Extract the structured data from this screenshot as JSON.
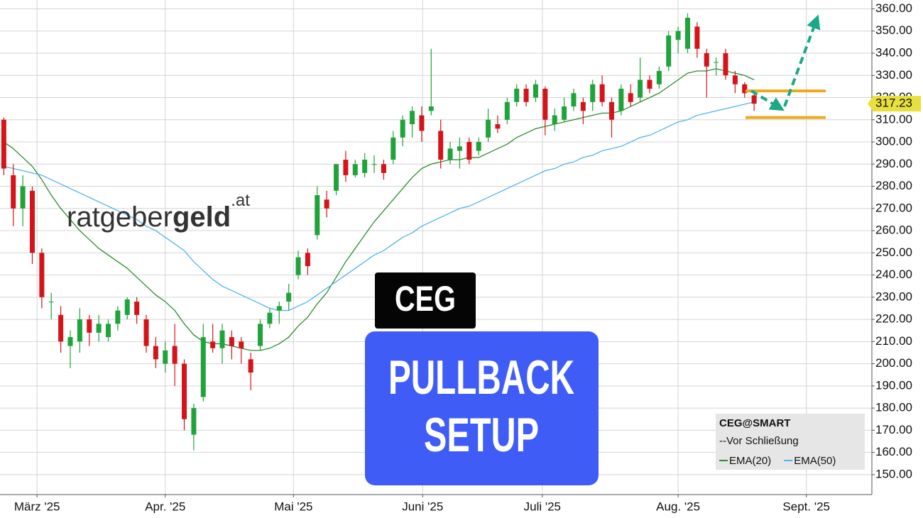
{
  "chart_data": {
    "type": "candlestick",
    "categories": [
      null,
      null,
      null,
      null,
      null,
      null,
      null,
      null,
      null,
      null,
      null,
      null,
      null,
      null,
      null,
      null,
      null,
      null,
      null,
      null,
      null,
      null,
      null,
      null,
      null,
      null,
      null,
      null,
      null,
      null,
      null,
      null,
      null,
      null,
      null,
      null,
      null,
      null,
      null,
      null,
      null,
      null,
      null,
      null,
      null,
      null,
      null,
      null,
      null,
      null,
      null,
      null,
      null,
      null,
      null,
      null,
      null,
      null,
      null,
      null,
      null,
      null,
      null,
      null,
      null,
      null,
      null,
      null,
      null,
      null,
      null,
      null,
      null,
      null,
      null,
      null,
      null,
      null,
      null,
      null
    ],
    "open": [
      310,
      285,
      270,
      278,
      250,
      228,
      222,
      208,
      210,
      220,
      214,
      212,
      218,
      222,
      228,
      220,
      208,
      200,
      208,
      200,
      168,
      185,
      210,
      207,
      212,
      210,
      202,
      208,
      218,
      224,
      228,
      240,
      250,
      258,
      274,
      278,
      292,
      285,
      286,
      290,
      290,
      292,
      302,
      308,
      312,
      314,
      305,
      292,
      296,
      300,
      296,
      302,
      308,
      310,
      318,
      324,
      320,
      324,
      308,
      310,
      316,
      318,
      318,
      326,
      318,
      314,
      322,
      320,
      328,
      326,
      334,
      346,
      342,
      352,
      340,
      336,
      340,
      330,
      326,
      321
    ],
    "high": [
      311,
      290,
      285,
      280,
      252,
      232,
      226,
      215,
      225,
      222,
      222,
      220,
      226,
      230,
      230,
      222,
      212,
      210,
      218,
      202,
      182,
      218,
      218,
      218,
      215,
      212,
      205,
      220,
      225,
      228,
      236,
      251,
      252,
      280,
      278,
      290,
      296,
      292,
      295,
      294,
      292,
      305,
      312,
      316,
      316,
      342,
      310,
      300,
      302,
      302,
      302,
      315,
      312,
      320,
      326,
      326,
      328,
      325,
      315,
      320,
      324,
      320,
      328,
      330,
      320,
      326,
      326,
      338,
      330,
      334,
      350,
      352,
      358,
      354,
      342,
      338,
      342,
      332,
      327,
      322
    ],
    "low": [
      285,
      262,
      262,
      245,
      225,
      220,
      205,
      198,
      205,
      208,
      210,
      210,
      215,
      220,
      218,
      205,
      198,
      196,
      190,
      170,
      161,
      183,
      205,
      200,
      202,
      200,
      188,
      206,
      216,
      218,
      224,
      238,
      240,
      256,
      266,
      276,
      282,
      284,
      284,
      286,
      283,
      290,
      298,
      302,
      300,
      312,
      288,
      290,
      288,
      290,
      294,
      300,
      304,
      308,
      316,
      316,
      318,
      303,
      305,
      309,
      314,
      308,
      314,
      316,
      302,
      312,
      316,
      318,
      322,
      324,
      332,
      340,
      340,
      338,
      320,
      330,
      328,
      322,
      320,
      314
    ],
    "close": [
      288,
      270,
      280,
      250,
      230,
      228,
      210,
      212,
      220,
      214,
      218,
      218,
      224,
      229,
      222,
      208,
      202,
      206,
      200,
      175,
      180,
      212,
      207,
      215,
      208,
      207,
      196,
      218,
      223,
      226,
      232,
      248,
      244,
      276,
      270,
      290,
      285,
      290,
      292,
      290,
      286,
      302,
      310,
      314,
      305,
      316,
      292,
      297,
      298,
      292,
      300,
      310,
      306,
      318,
      324,
      318,
      326,
      310,
      312,
      316,
      322,
      314,
      326,
      318,
      310,
      324,
      318,
      328,
      324,
      332,
      348,
      350,
      356,
      342,
      334,
      336,
      330,
      326,
      322,
      317.23
    ],
    "up_color": "#1fa33a",
    "down_color": "#d4141a",
    "series": [
      {
        "name": "EMA(20)",
        "color": "#2e8b2e",
        "values": [
          300,
          297,
          293,
          289,
          283,
          276,
          270,
          265,
          260,
          256,
          252,
          249,
          246,
          243,
          239,
          235,
          231,
          228,
          224,
          218,
          213,
          210,
          209,
          209,
          208,
          207,
          206,
          206,
          207,
          209,
          212,
          217,
          221,
          227,
          232,
          239,
          246,
          252,
          258,
          264,
          269,
          274,
          279,
          284,
          288,
          290,
          291,
          292,
          292,
          293,
          293,
          295,
          297,
          299,
          302,
          304,
          306,
          307,
          308,
          309,
          310,
          311,
          312,
          313,
          313,
          314,
          316,
          318,
          320,
          322,
          325,
          328,
          331,
          332,
          332,
          333,
          332,
          331,
          330,
          328
        ]
      },
      {
        "name": "EMA(50)",
        "color": "#4fb3ef",
        "values": [
          289,
          288,
          287,
          286,
          285,
          283,
          281,
          279,
          277,
          275,
          273,
          271,
          269,
          267,
          265,
          262,
          260,
          257,
          254,
          251,
          246,
          242,
          238,
          235,
          233,
          231,
          229,
          227,
          225,
          224,
          224,
          226,
          228,
          231,
          234,
          237,
          240,
          243,
          246,
          249,
          251,
          254,
          257,
          259,
          262,
          264,
          266,
          268,
          270,
          271,
          273,
          275,
          277,
          279,
          281,
          283,
          285,
          287,
          288,
          290,
          291,
          293,
          294,
          296,
          297,
          298,
          300,
          302,
          303,
          305,
          307,
          309,
          310,
          312,
          313,
          314,
          315,
          316,
          317,
          318
        ]
      }
    ],
    "hlines": {
      "values": [
        323,
        311
      ],
      "color": "#f0a818"
    },
    "ylim": [
      141,
      364
    ],
    "yticks": [
      {
        "value": 150,
        "label": "150.00"
      },
      {
        "value": 160,
        "label": "160.00"
      },
      {
        "value": 170,
        "label": "170.00"
      },
      {
        "value": 180,
        "label": "180.00"
      },
      {
        "value": 190,
        "label": "190.00"
      },
      {
        "value": 200,
        "label": "200.00"
      },
      {
        "value": 210,
        "label": "210.00"
      },
      {
        "value": 220,
        "label": "220.00"
      },
      {
        "value": 230,
        "label": "230.00"
      },
      {
        "value": 240,
        "label": "240.00"
      },
      {
        "value": 250,
        "label": "250.00"
      },
      {
        "value": 260,
        "label": "260.00"
      },
      {
        "value": 270,
        "label": "270.00"
      },
      {
        "value": 280,
        "label": "280.00"
      },
      {
        "value": 290,
        "label": "290.00"
      },
      {
        "value": 300,
        "label": "300.00"
      },
      {
        "value": 310,
        "label": "310.00"
      },
      {
        "value": 320,
        "label": "320.00"
      },
      {
        "value": 330,
        "label": "330.00"
      },
      {
        "value": 340,
        "label": "340.00"
      },
      {
        "value": 350,
        "label": "350.00"
      },
      {
        "value": 360,
        "label": "360.00"
      }
    ],
    "xlim": [
      -0.4,
      91.4
    ],
    "xticks": [
      {
        "value": 3.5,
        "label": "März '25"
      },
      {
        "value": 17,
        "label": "Apr. '25"
      },
      {
        "value": 30.5,
        "label": "Mai '25"
      },
      {
        "value": 44.1,
        "label": "Juni '25"
      },
      {
        "value": 56.7,
        "label": "Juli '25"
      },
      {
        "value": 71,
        "label": "Aug. '25"
      },
      {
        "value": 84.5,
        "label": "Sept. '25"
      }
    ],
    "grid": true,
    "legend_title": "CEG@SMART",
    "legend_note": "--Vor Schließung",
    "last_price_color": "#e8e03c"
  },
  "logo": {
    "main": "ratgeber",
    "bold": "geld",
    "suffix": ".at"
  },
  "badge": "CEG",
  "banner": [
    "PULLBACK",
    "SETUP"
  ]
}
